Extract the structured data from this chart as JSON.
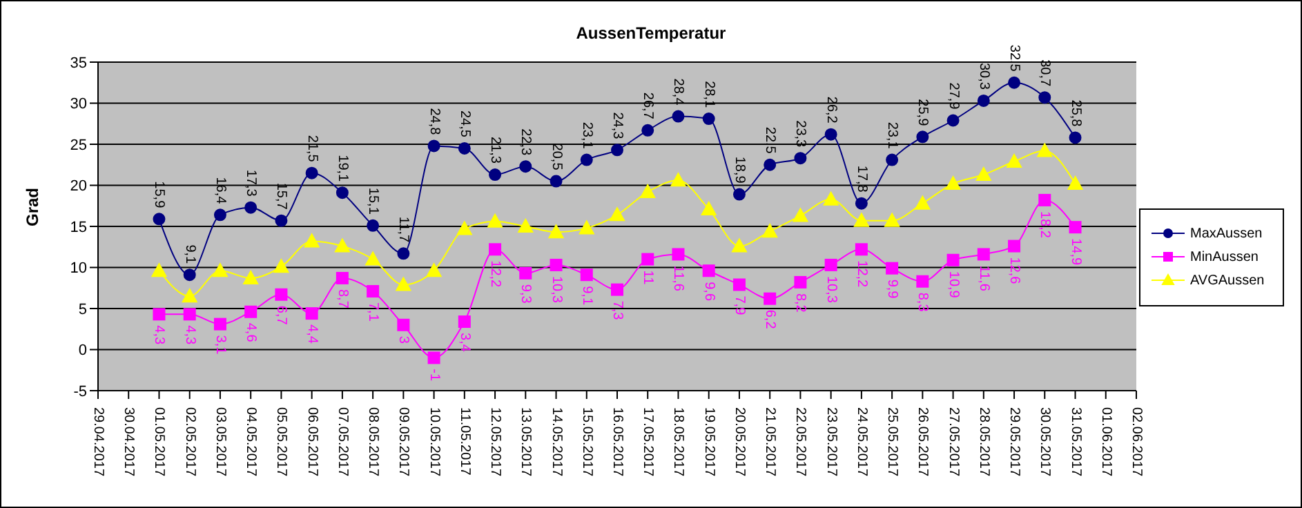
{
  "chart_data": {
    "type": "line",
    "title": "AussenTemperatur",
    "ylabel": "Grad",
    "categories": [
      "29.04.2017",
      "30.04.2017",
      "01.05.2017",
      "02.05.2017",
      "03.05.2017",
      "04.05.2017",
      "05.05.2017",
      "06.05.2017",
      "07.05.2017",
      "08.05.2017",
      "09.05.2017",
      "10.05.2017",
      "11.05.2017",
      "12.05.2017",
      "13.05.2017",
      "14.05.2017",
      "15.05.2017",
      "16.05.2017",
      "17.05.2017",
      "18.05.2017",
      "19.05.2017",
      "20.05.2017",
      "21.05.2017",
      "22.05.2017",
      "23.05.2017",
      "24.05.2017",
      "25.05.2017",
      "26.05.2017",
      "27.05.2017",
      "28.05.2017",
      "29.05.2017",
      "30.05.2017",
      "31.05.2017",
      "01.06.2017",
      "02.06.2017"
    ],
    "series": [
      {
        "name": "MaxAussen",
        "color": "#000080",
        "marker": "circle",
        "values": [
          null,
          null,
          15.9,
          9.1,
          16.4,
          17.3,
          15.7,
          21.5,
          19.1,
          15.1,
          11.7,
          24.8,
          24.5,
          21.3,
          22.3,
          20.5,
          23.1,
          24.3,
          26.7,
          28.4,
          28.1,
          18.9,
          22.5,
          23.3,
          26.2,
          17.8,
          23.1,
          25.9,
          27.9,
          30.3,
          32.5,
          30.7,
          25.8,
          null,
          null
        ],
        "value_labels": [
          null,
          null,
          "15,9",
          "9,1",
          "16,4",
          "17,3",
          "15,7",
          "21,5",
          "19,1",
          "15,1",
          "11,7",
          "24,8",
          "24,5",
          "21,3",
          "22,3",
          "20,5",
          "23,1",
          "24,3",
          "26,7",
          "28,4",
          "28,1",
          "18,9",
          "22,5",
          "23,3",
          "26,2",
          "17,8",
          "23,1",
          "25,9",
          "27,9",
          "30,3",
          "32,5",
          "30,7",
          "25,8",
          null,
          null
        ]
      },
      {
        "name": "MinAussen",
        "color": "#ff00ff",
        "marker": "square",
        "values": [
          null,
          null,
          4.3,
          4.3,
          3.1,
          4.6,
          6.7,
          4.4,
          8.7,
          7.1,
          3,
          -1,
          3.4,
          12.2,
          9.3,
          10.3,
          9.1,
          7.3,
          11,
          11.6,
          9.6,
          7.9,
          6.2,
          8.2,
          10.3,
          12.2,
          9.9,
          8.3,
          10.9,
          11.6,
          12.6,
          18.2,
          14.9,
          null,
          null
        ],
        "value_labels": [
          null,
          null,
          "4,3",
          "4,3",
          "3,1",
          "4,6",
          "6,7",
          "4,4",
          "8,7",
          "7,1",
          "3",
          "-1",
          "3,4",
          "12,2",
          "9,3",
          "10,3",
          "9,1",
          "7,3",
          "11",
          "11,6",
          "9,6",
          "7,9",
          "6,2",
          "8,2",
          "10,3",
          "12,2",
          "9,9",
          "8,3",
          "10,9",
          "11,6",
          "12,6",
          "18,2",
          "14,9",
          null,
          null
        ]
      },
      {
        "name": "AVGAussen",
        "color": "#ffff00",
        "marker": "triangle",
        "values": [
          null,
          null,
          9.6,
          6.5,
          9.6,
          8.7,
          10.1,
          13.2,
          12.6,
          11.0,
          7.9,
          9.6,
          14.7,
          15.6,
          15.0,
          14.3,
          14.8,
          16.4,
          19.2,
          20.6,
          17.1,
          12.6,
          14.4,
          16.3,
          18.3,
          15.7,
          15.7,
          17.8,
          20.2,
          21.3,
          22.9,
          24.2,
          20.2,
          null,
          null
        ]
      }
    ],
    "ylim": [
      -5,
      35
    ],
    "yticks": [
      -5,
      0,
      5,
      10,
      15,
      20,
      25,
      30,
      35
    ],
    "grid": "y",
    "legend": "right",
    "line_style": "solid"
  }
}
